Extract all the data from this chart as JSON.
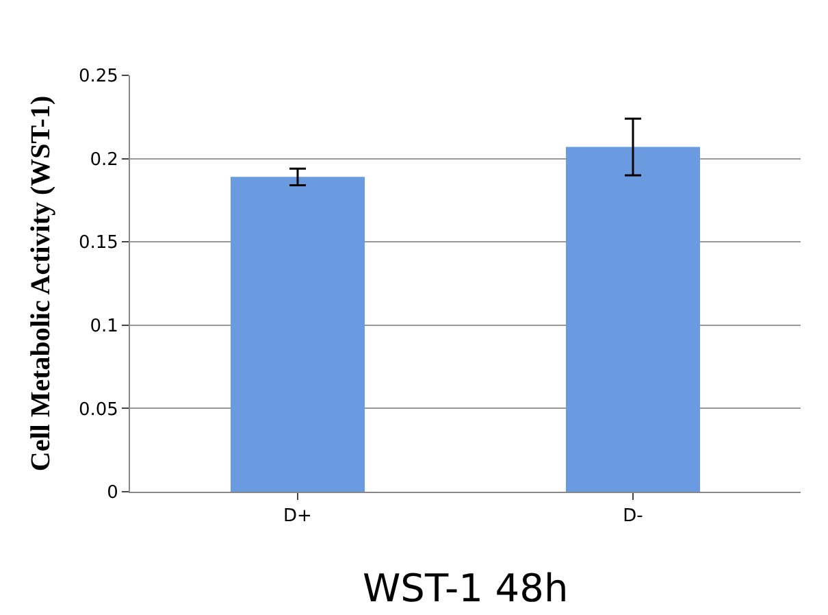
{
  "chart_data": {
    "type": "bar",
    "title": "WST-1 48h",
    "ylabel": "Cell Metabolic Activity (WST-1)",
    "categories": [
      "D+",
      "D-"
    ],
    "values": [
      0.189,
      0.207
    ],
    "errors": [
      0.005,
      0.017
    ],
    "color": "#6a9be0",
    "ylim": [
      0,
      0.25
    ],
    "yticks": [
      0,
      0.05,
      0.1,
      0.15,
      0.2,
      0.25
    ],
    "grid": "y"
  }
}
